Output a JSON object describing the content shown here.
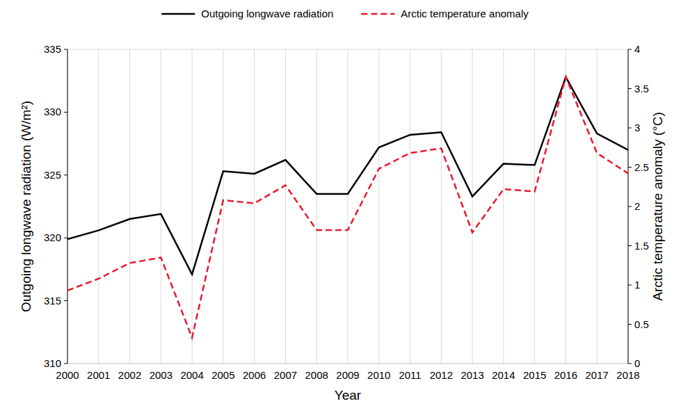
{
  "chart_data": {
    "type": "line",
    "x_label": "Year",
    "y_label": "Outgoing longwave radiation (W/m²)",
    "y2_label": "Arctic temperature anomaly (°C)",
    "categories": [
      "2000",
      "2001",
      "2002",
      "2003",
      "2004",
      "2005",
      "2006",
      "2007",
      "2008",
      "2009",
      "2010",
      "2011",
      "2012",
      "2013",
      "2014",
      "2015",
      "2016",
      "2017",
      "2018"
    ],
    "series": [
      {
        "name": "Outgoing longwave radiation",
        "color": "#000000",
        "line_style": "solid",
        "values": [
          319.9,
          320.6,
          321.5,
          321.9,
          317.1,
          325.3,
          325.1,
          326.2,
          323.5,
          323.5,
          327.2,
          328.2,
          328.4,
          323.3,
          325.9,
          325.8,
          332.8,
          328.3,
          327.0
        ]
      },
      {
        "name": "Arctic temperature anomaly",
        "color": "#e8192c",
        "line_style": "dashed",
        "axis": "y2",
        "values": [
          0.93,
          1.08,
          1.28,
          1.35,
          0.33,
          2.08,
          2.04,
          2.27,
          1.7,
          1.7,
          2.48,
          2.68,
          2.74,
          1.67,
          2.22,
          2.19,
          3.65,
          2.68,
          2.42
        ]
      }
    ],
    "ylim": [
      310,
      335
    ],
    "yticks": [
      310,
      315,
      320,
      325,
      330,
      335
    ],
    "y2lim": [
      0,
      4
    ],
    "y2ticks": [
      0,
      0.5,
      1,
      1.5,
      2,
      2.5,
      3,
      3.5,
      4
    ],
    "grid": true,
    "legend": "top"
  }
}
